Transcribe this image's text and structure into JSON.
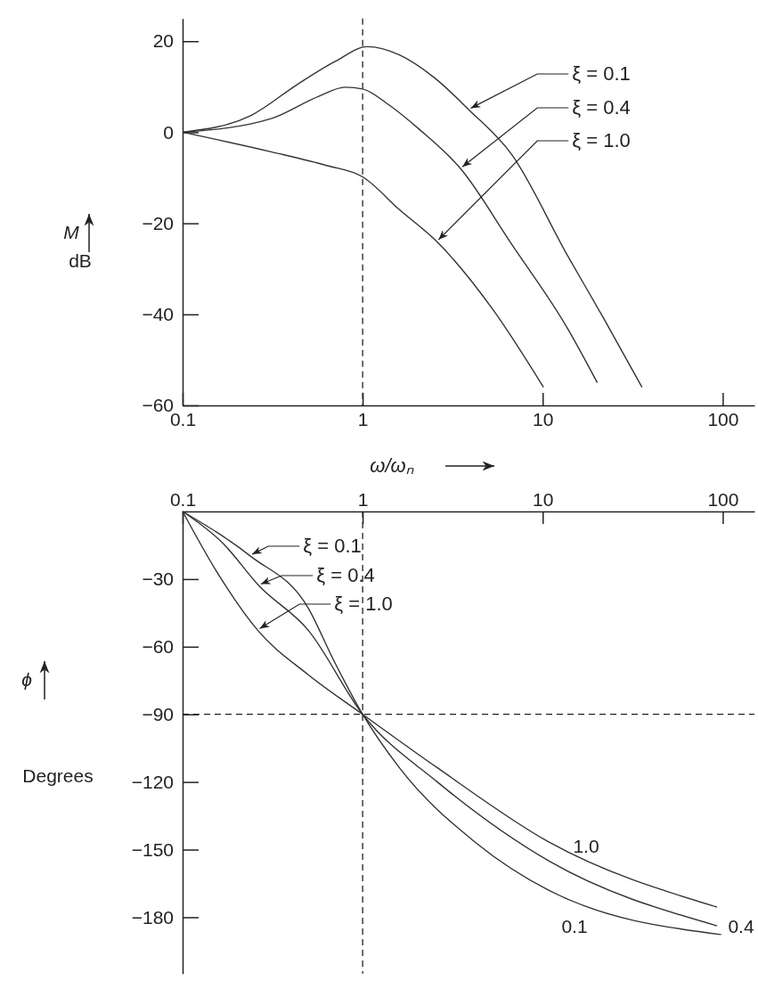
{
  "chart_data": [
    {
      "type": "line",
      "xlabel": "ω/ωₙ",
      "ylabel": "M\ndB",
      "log": "x",
      "xlim": [
        0.1,
        150
      ],
      "xticks": [
        0.1,
        1,
        10,
        100
      ],
      "ylim": [
        -60,
        25
      ],
      "yticks": [
        20,
        0,
        -20,
        -40,
        -60
      ],
      "grid": false,
      "series": [
        {
          "color": "#333333",
          "x": [
            0.1,
            0.24,
            0.43,
            0.7,
            1.06,
            1.6,
            2.5,
            3.9,
            6.7,
            13.7,
            21.9,
            35.6
          ],
          "values": [
            0,
            3.7,
            10.4,
            15.5,
            18.8,
            17,
            12,
            4.9,
            -4.8,
            -27,
            -41,
            -56
          ]
        },
        {
          "color": "#333333",
          "x": [
            0.1,
            0.31,
            0.57,
            0.8,
            1.0,
            1.4,
            2.07,
            3.5,
            6.7,
            13.7,
            20.1
          ],
          "values": [
            0,
            3,
            7.9,
            9.9,
            9.5,
            6,
            0.6,
            -8,
            -24.5,
            -43,
            -55
          ]
        },
        {
          "color": "#333333",
          "x": [
            0.1,
            0.31,
            0.63,
            1.0,
            1.6,
            2.58,
            5.3,
            10.1
          ],
          "values": [
            0,
            -4.3,
            -7.3,
            -9.8,
            -17,
            -24,
            -39,
            -56
          ]
        }
      ],
      "ref_lines": [
        {
          "axis": "x",
          "value": 1,
          "line_style": "dashed"
        }
      ],
      "annotations": [
        {
          "text": "ξ = 0.1",
          "x": 3.9,
          "y": 4.9
        },
        {
          "text": "ξ = 0.4",
          "x": 3.5,
          "y": -8
        },
        {
          "text": "ξ = 1.0",
          "x": 2.58,
          "y": -24
        }
      ]
    },
    {
      "type": "line",
      "ylabel": "ϕ\nDegrees",
      "log": "x",
      "xlim": [
        0.1,
        150
      ],
      "xticks": [
        0.1,
        1,
        10,
        100
      ],
      "ylim": [
        -205,
        0
      ],
      "yticks": [
        -30,
        -60,
        -90,
        -120,
        -150,
        -180
      ],
      "grid": false,
      "series": [
        {
          "color": "#333333",
          "x": [
            0.1,
            0.238,
            0.5,
            0.69,
            1,
            1.6,
            4.2,
            10.8,
            98
          ],
          "values": [
            0,
            -19.8,
            -43,
            -66,
            -90,
            -113.7,
            -146.6,
            -168,
            -187.7
          ]
        },
        {
          "color": "#333333",
          "x": [
            0.1,
            0.167,
            0.266,
            0.5,
            1,
            2.6,
            10.8,
            93
          ],
          "values": [
            0,
            -14,
            -33,
            -52.8,
            -90,
            -120,
            -155,
            -183.8
          ]
        },
        {
          "color": "#333333",
          "x": [
            0.1,
            0.152,
            0.262,
            0.5,
            1,
            2.6,
            10.8,
            93
          ],
          "values": [
            0,
            -25.7,
            -52.8,
            -72.5,
            -90,
            -113.7,
            -146.6,
            -175.5
          ]
        }
      ],
      "ref_lines": [
        {
          "axis": "x",
          "value": 1,
          "line_style": "dashed"
        },
        {
          "axis": "y",
          "value": -90,
          "line_style": "dashed"
        }
      ],
      "annotations": [
        {
          "text": "ξ = 0.1",
          "x": 0.238,
          "y": -19.8
        },
        {
          "text": "ξ = 0.4",
          "x": 0.266,
          "y": -33
        },
        {
          "text": "ξ = 1.0",
          "x": 0.262,
          "y": -52.8
        },
        "1.0",
        "0.1",
        "0.4"
      ]
    }
  ]
}
